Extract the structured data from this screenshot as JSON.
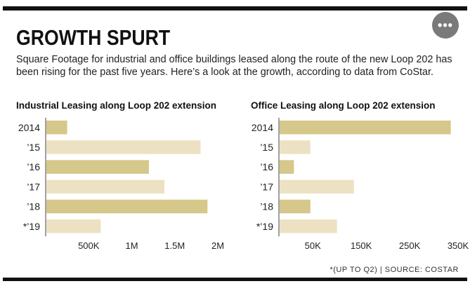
{
  "header": {
    "title": "GROWTH SPURT",
    "subtitle": "Square Footage for industrial and office buildings leased along the route of the new Loop 202 has been rising for the past five years. Here’s a look at the growth, according to data from CoStar.",
    "more_button": "•••"
  },
  "footnote": "*(UP TO Q2)  |  SOURCE: COSTAR",
  "colors": {
    "bar_dark": "#d6c78a",
    "bar_light": "#ece2c3",
    "axis": "#444444"
  },
  "chart_data": [
    {
      "type": "bar",
      "orientation": "horizontal",
      "title": "Industrial Leasing along Loop 202 extension",
      "categories": [
        "2014",
        "’15",
        "’16",
        "’17",
        "’18",
        "*’19"
      ],
      "values": [
        250000,
        1800000,
        1200000,
        1380000,
        1880000,
        640000
      ],
      "xlim": [
        0,
        2000000
      ],
      "xticks": [
        500000,
        1000000,
        1500000,
        2000000
      ],
      "xtick_labels": [
        "500K",
        "1M",
        "1.5M",
        "2M"
      ],
      "grid": false
    },
    {
      "type": "bar",
      "orientation": "horizontal",
      "title": "Office Leasing along Loop 202 extension",
      "categories": [
        "2014",
        "’15",
        "’16",
        "’17",
        "’18",
        "*’19"
      ],
      "values": [
        335000,
        45000,
        11000,
        135000,
        45000,
        100000
      ],
      "xlim": [
        -20000,
        350000
      ],
      "xticks": [
        50000,
        150000,
        250000,
        350000
      ],
      "xtick_labels": [
        "50K",
        "150K",
        "250K",
        "350K"
      ],
      "grid": false
    }
  ]
}
